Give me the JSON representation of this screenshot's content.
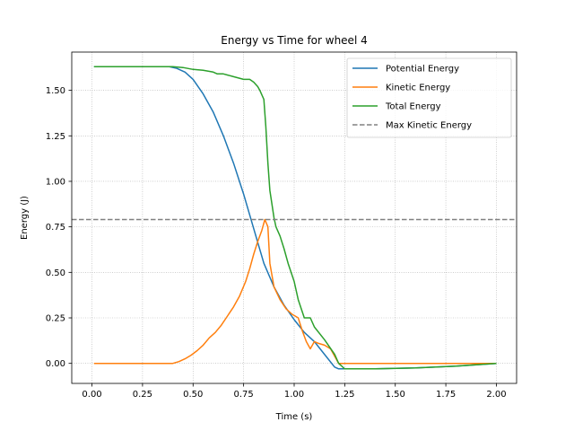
{
  "chart_data": {
    "type": "line",
    "title": "Energy vs Time for wheel 4",
    "xlabel": "Time (s)",
    "ylabel": "Energy (J)",
    "xlim": [
      -0.1,
      2.1
    ],
    "ylim": [
      -0.11,
      1.71
    ],
    "xticks": [
      0.0,
      0.25,
      0.5,
      0.75,
      1.0,
      1.25,
      1.5,
      1.75,
      2.0
    ],
    "xtick_labels": [
      "0.00",
      "0.25",
      "0.50",
      "0.75",
      "1.00",
      "1.25",
      "1.50",
      "1.75",
      "2.00"
    ],
    "yticks": [
      0.0,
      0.25,
      0.5,
      0.75,
      1.0,
      1.25,
      1.5
    ],
    "ytick_labels": [
      "0.00",
      "0.25",
      "0.50",
      "0.75",
      "1.00",
      "1.25",
      "1.50"
    ],
    "grid": true,
    "legend_position": "top-right",
    "series": [
      {
        "name": "Potential Energy",
        "color": "#1f77b4",
        "x": [
          0.01,
          0.1,
          0.2,
          0.3,
          0.38,
          0.42,
          0.46,
          0.5,
          0.55,
          0.6,
          0.65,
          0.7,
          0.75,
          0.8,
          0.85,
          0.9,
          0.95,
          1.0,
          1.05,
          1.1,
          1.15,
          1.2,
          1.22,
          1.25,
          1.4,
          1.6,
          1.8,
          2.0
        ],
        "y": [
          1.63,
          1.63,
          1.63,
          1.63,
          1.63,
          1.62,
          1.6,
          1.56,
          1.48,
          1.38,
          1.25,
          1.1,
          0.93,
          0.74,
          0.55,
          0.42,
          0.32,
          0.24,
          0.17,
          0.12,
          0.05,
          -0.02,
          -0.03,
          -0.03,
          -0.03,
          -0.025,
          -0.015,
          0.0
        ]
      },
      {
        "name": "Kinetic Energy",
        "color": "#ff7f0e",
        "x": [
          0.01,
          0.2,
          0.4,
          0.43,
          0.46,
          0.49,
          0.52,
          0.55,
          0.58,
          0.61,
          0.64,
          0.67,
          0.7,
          0.73,
          0.76,
          0.78,
          0.8,
          0.82,
          0.84,
          0.855,
          0.87,
          0.88,
          0.9,
          0.93,
          0.96,
          0.99,
          1.02,
          1.04,
          1.06,
          1.08,
          1.1,
          1.12,
          1.15,
          1.18,
          1.2,
          1.22,
          1.25,
          1.5,
          2.0
        ],
        "y": [
          0.0,
          0.0,
          0.0,
          0.01,
          0.025,
          0.045,
          0.07,
          0.1,
          0.14,
          0.17,
          0.21,
          0.26,
          0.31,
          0.37,
          0.45,
          0.52,
          0.6,
          0.67,
          0.73,
          0.79,
          0.75,
          0.55,
          0.42,
          0.35,
          0.3,
          0.27,
          0.25,
          0.18,
          0.12,
          0.08,
          0.12,
          0.11,
          0.1,
          0.08,
          0.04,
          0.0,
          0.0,
          0.0,
          0.0
        ]
      },
      {
        "name": "Total Energy",
        "color": "#2ca02c",
        "x": [
          0.01,
          0.2,
          0.4,
          0.45,
          0.5,
          0.55,
          0.6,
          0.62,
          0.65,
          0.7,
          0.75,
          0.78,
          0.8,
          0.82,
          0.83,
          0.85,
          0.86,
          0.87,
          0.88,
          0.9,
          0.91,
          0.93,
          0.95,
          0.97,
          1.0,
          1.02,
          1.05,
          1.08,
          1.1,
          1.15,
          1.2,
          1.22,
          1.25,
          1.4,
          1.6,
          1.8,
          2.0
        ],
        "y": [
          1.63,
          1.63,
          1.63,
          1.625,
          1.615,
          1.61,
          1.6,
          1.59,
          1.59,
          1.575,
          1.56,
          1.56,
          1.545,
          1.52,
          1.5,
          1.45,
          1.3,
          1.1,
          0.95,
          0.8,
          0.75,
          0.7,
          0.63,
          0.55,
          0.45,
          0.35,
          0.25,
          0.25,
          0.2,
          0.13,
          0.05,
          0.0,
          -0.03,
          -0.03,
          -0.025,
          -0.015,
          0.0
        ]
      },
      {
        "name": "Max Kinetic Energy",
        "color": "#808080",
        "dashed": true,
        "hline": 0.79
      }
    ]
  }
}
